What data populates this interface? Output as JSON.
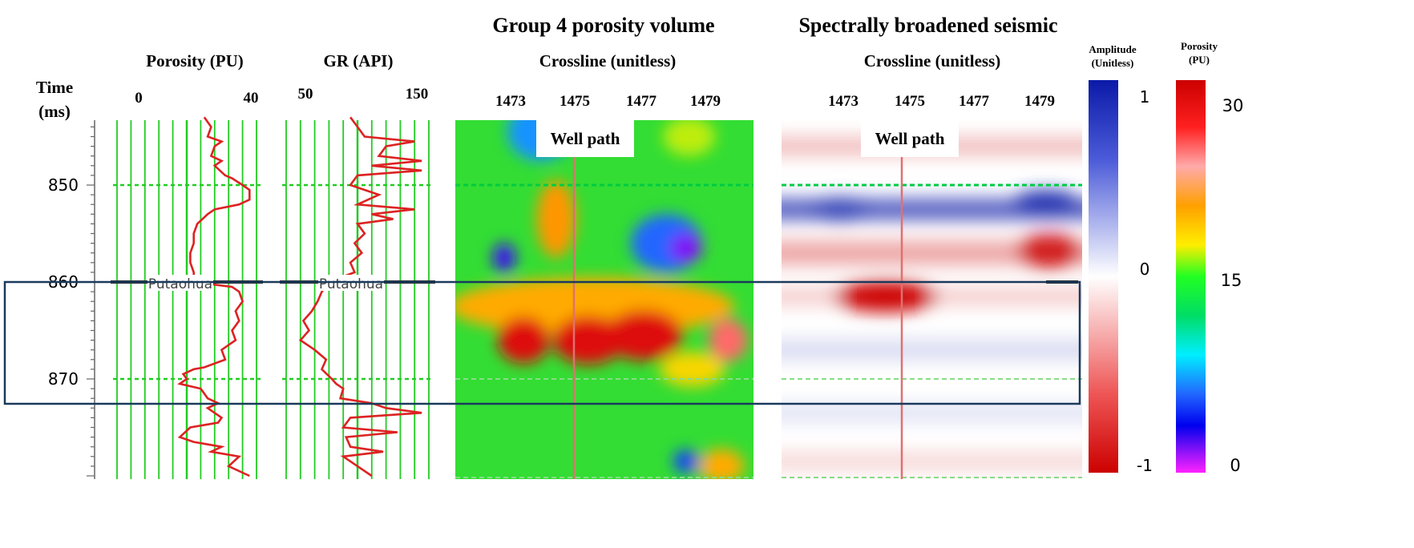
{
  "chart_data": [
    {
      "type": "line",
      "panel": "porosity-log",
      "title": "Porosity (PU)",
      "xlim": [
        0,
        40
      ],
      "x_ticks": [
        "0",
        "40"
      ],
      "y_axis_title": [
        "Time",
        "(ms)"
      ],
      "y_ticks": [
        "850",
        "860",
        "870"
      ],
      "ylim": [
        843,
        880
      ],
      "marker_label": "Putaohua",
      "marker_time": 860,
      "dashed_horizons": [
        850,
        870
      ],
      "series": [
        {
          "points": [
            [
              25,
              843
            ],
            [
              27,
              844
            ],
            [
              26,
              845
            ],
            [
              30,
              845.5
            ],
            [
              28,
              846
            ],
            [
              27,
              847
            ],
            [
              30,
              847.5
            ],
            [
              28,
              848
            ],
            [
              31,
              849
            ],
            [
              33,
              849.3
            ],
            [
              36,
              850
            ],
            [
              38,
              850.5
            ],
            [
              38,
              851.5
            ],
            [
              35,
              852
            ],
            [
              28,
              852.5
            ],
            [
              26,
              853
            ],
            [
              23,
              854
            ],
            [
              22,
              855
            ],
            [
              22,
              856
            ],
            [
              21,
              857
            ],
            [
              21,
              858
            ],
            [
              22,
              859
            ],
            [
              22,
              860
            ],
            [
              33,
              860.5
            ],
            [
              35,
              861
            ],
            [
              36,
              862
            ],
            [
              34,
              863
            ],
            [
              35,
              864
            ],
            [
              33,
              865
            ],
            [
              34,
              866
            ],
            [
              32,
              866.5
            ],
            [
              30,
              867
            ],
            [
              31,
              868
            ],
            [
              25,
              868.8
            ],
            [
              22,
              869
            ],
            [
              19,
              869.5
            ],
            [
              20,
              870
            ],
            [
              18,
              870.5
            ],
            [
              24,
              871
            ],
            [
              26,
              872
            ],
            [
              29,
              872.5
            ],
            [
              26,
              873
            ],
            [
              30,
              874
            ],
            [
              29,
              874.5
            ],
            [
              21,
              875
            ],
            [
              18,
              876
            ],
            [
              22,
              876.5
            ],
            [
              30,
              877
            ],
            [
              27,
              877.5
            ],
            [
              35,
              878
            ],
            [
              32,
              879
            ],
            [
              38,
              880
            ]
          ]
        }
      ]
    },
    {
      "type": "line",
      "panel": "gr-log",
      "title": "GR (API)",
      "xlim": [
        50,
        150
      ],
      "x_ticks": [
        "50",
        "150"
      ],
      "marker_label": "Putaohua",
      "marker_time": 860,
      "series": [
        {
          "points": [
            [
              95,
              843
            ],
            [
              100,
              844
            ],
            [
              105,
              845
            ],
            [
              140,
              845.5
            ],
            [
              120,
              846
            ],
            [
              115,
              847
            ],
            [
              145,
              847.5
            ],
            [
              110,
              848
            ],
            [
              145,
              848.5
            ],
            [
              100,
              849
            ],
            [
              95,
              850
            ],
            [
              115,
              851
            ],
            [
              100,
              852
            ],
            [
              140,
              852.5
            ],
            [
              110,
              853
            ],
            [
              125,
              853.5
            ],
            [
              100,
              854
            ],
            [
              105,
              855
            ],
            [
              98,
              856
            ],
            [
              103,
              857
            ],
            [
              95,
              858
            ],
            [
              98,
              859
            ],
            [
              80,
              860
            ],
            [
              75,
              861
            ],
            [
              72,
              862
            ],
            [
              68,
              863
            ],
            [
              62,
              864
            ],
            [
              66,
              865
            ],
            [
              60,
              866
            ],
            [
              70,
              867
            ],
            [
              78,
              868
            ],
            [
              75,
              869
            ],
            [
              82,
              870
            ],
            [
              85,
              870.5
            ],
            [
              90,
              871
            ],
            [
              88,
              872
            ],
            [
              110,
              872.5
            ],
            [
              120,
              873
            ],
            [
              145,
              873.5
            ],
            [
              95,
              874
            ],
            [
              90,
              875
            ],
            [
              128,
              875.5
            ],
            [
              92,
              876
            ],
            [
              95,
              877
            ],
            [
              118,
              877.5
            ],
            [
              90,
              878
            ],
            [
              100,
              879
            ],
            [
              110,
              880
            ]
          ]
        }
      ]
    },
    {
      "type": "heatmap",
      "panel": "porosity-volume",
      "title": "Group 4 porosity volume",
      "xlabel": "Crossline (unitless)",
      "x_ticks": [
        "1473",
        "1475",
        "1477",
        "1479"
      ],
      "annotation": "Well path",
      "value_range": [
        0,
        30
      ],
      "blobs": [
        {
          "x": 1473.9,
          "y": 844.5,
          "value": 8,
          "rx": 1.0,
          "ry": 3
        },
        {
          "x": 1474.4,
          "y": 853.5,
          "value": 23,
          "rx": 0.6,
          "ry": 4
        },
        {
          "x": 1472.8,
          "y": 857.5,
          "value": 3,
          "rx": 0.35,
          "ry": 1.5
        },
        {
          "x": 1477.8,
          "y": 856,
          "value": 7,
          "rx": 1.1,
          "ry": 3
        },
        {
          "x": 1478.4,
          "y": 856.5,
          "value": 2,
          "rx": 0.5,
          "ry": 1.5
        },
        {
          "x": 1478.5,
          "y": 845,
          "value": 18,
          "rx": 0.8,
          "ry": 2
        },
        {
          "x": 1475.5,
          "y": 862.5,
          "value": 22,
          "rx": 4.4,
          "ry": 3
        },
        {
          "x": 1473.4,
          "y": 866,
          "value": 29,
          "rx": 0.8,
          "ry": 2.4
        },
        {
          "x": 1475.4,
          "y": 866,
          "value": 29,
          "rx": 1.1,
          "ry": 2.5
        },
        {
          "x": 1477.1,
          "y": 865.5,
          "value": 29,
          "rx": 1.2,
          "ry": 2.6
        },
        {
          "x": 1479.7,
          "y": 866,
          "value": 26,
          "rx": 0.6,
          "ry": 2.2
        },
        {
          "x": 1478.6,
          "y": 869,
          "value": 20,
          "rx": 1.0,
          "ry": 1.8
        },
        {
          "x": 1478.4,
          "y": 878.5,
          "value": 6,
          "rx": 0.4,
          "ry": 1.2
        },
        {
          "x": 1479.5,
          "y": 879,
          "value": 22,
          "rx": 0.7,
          "ry": 1.8
        }
      ]
    },
    {
      "type": "heatmap",
      "panel": "seismic",
      "title": "Spectrally broadened seismic",
      "xlabel": "Crossline (unitless)",
      "x_ticks": [
        "1473",
        "1475",
        "1477",
        "1479"
      ],
      "annotation": "Well path",
      "value_range": [
        -1,
        1
      ],
      "bands": [
        {
          "y": 846,
          "value": -0.25,
          "thickness": 2
        },
        {
          "y": 852.5,
          "value": 0.7,
          "thickness": 2.2
        },
        {
          "y": 857,
          "value": -0.35,
          "thickness": 2.5
        },
        {
          "y": 861.5,
          "value": -0.2,
          "thickness": 1.8
        },
        {
          "y": 867,
          "value": 0.15,
          "thickness": 2.2
        },
        {
          "y": 873.5,
          "value": 0.12,
          "thickness": 2
        },
        {
          "y": 878.5,
          "value": -0.15,
          "thickness": 2
        }
      ],
      "blobs": [
        {
          "x": 1474.3,
          "y": 861.5,
          "value": -1,
          "rx": 1.6,
          "ry": 1.6
        },
        {
          "x": 1479.3,
          "y": 856.8,
          "value": -0.9,
          "rx": 1.0,
          "ry": 1.8
        },
        {
          "x": 1479.2,
          "y": 851.7,
          "value": 0.9,
          "rx": 1.0,
          "ry": 1.2
        },
        {
          "x": 1472.9,
          "y": 852.5,
          "value": 0.8,
          "rx": 0.9,
          "ry": 1.3
        }
      ]
    }
  ],
  "colorbars": {
    "amplitude": {
      "title_lines": [
        "Amplitude",
        "(Unitless)"
      ],
      "ticks": [
        "1",
        "0",
        "-1"
      ]
    },
    "porosity": {
      "title_lines": [
        "Porosity",
        "(PU)"
      ],
      "ticks": [
        "30",
        "15",
        "0"
      ]
    }
  },
  "colors": {
    "log_grid": "#22cc22",
    "log_curve": "#dd2222",
    "horizon_line": "#222222",
    "highlight_box": "#1a3a5c"
  }
}
